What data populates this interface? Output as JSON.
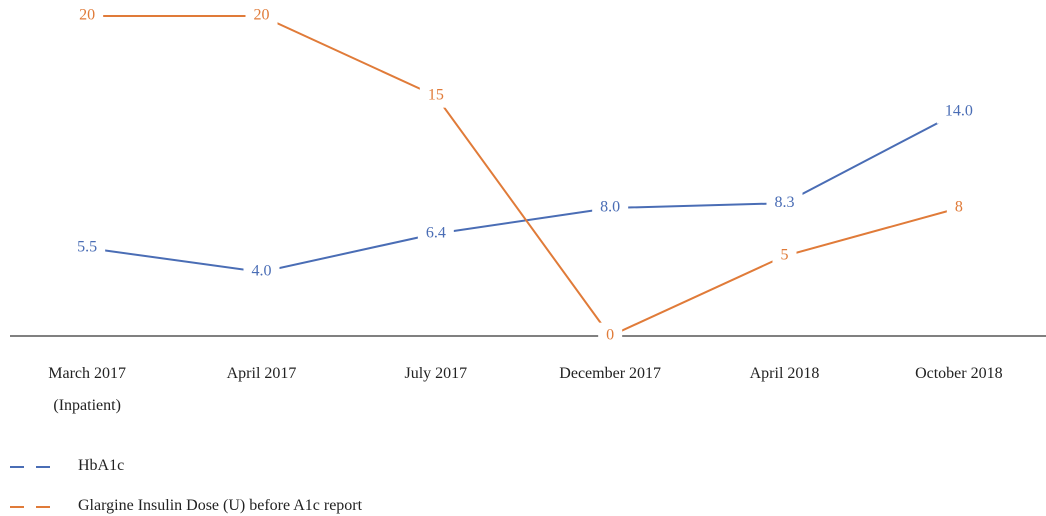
{
  "chart_data": {
    "type": "line",
    "categories": [
      "March 2017\n(Inpatient)",
      "April 2017",
      "July 2017",
      "December 2017",
      "April 2018",
      "October 2018"
    ],
    "ylim": [
      0,
      20
    ],
    "series": [
      {
        "name": "HbA1c",
        "color": "#4a6db5",
        "values": [
          5.5,
          4.0,
          6.4,
          8.0,
          8.3,
          14.0
        ],
        "value_labels": [
          "5.5",
          "4.0",
          "6.4",
          "8.0",
          "8.3",
          "14.0"
        ]
      },
      {
        "name": "Glargine Insulin Dose (U) before A1c report",
        "color": "#e07b39",
        "values": [
          20,
          20,
          15,
          0,
          5,
          8
        ]
      }
    ],
    "legend": "bottom-left"
  }
}
